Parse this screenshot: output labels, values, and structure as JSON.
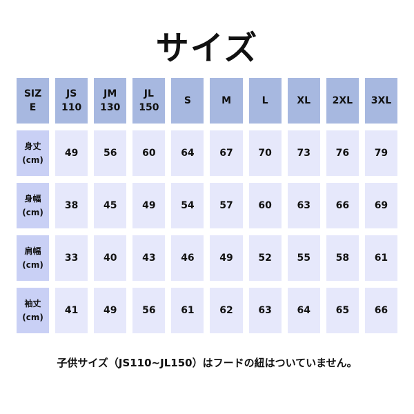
{
  "title": "サイズ",
  "header": [
    "SIZ\nE",
    "JS\n110",
    "JM\n130",
    "JL\n150",
    "S",
    "M",
    "L",
    "XL",
    "2XL",
    "3XL"
  ],
  "rows": [
    {
      "label": "身丈\n(cm)",
      "values": [
        "49",
        "56",
        "60",
        "64",
        "67",
        "70",
        "73",
        "76",
        "79"
      ]
    },
    {
      "label": "身幅\n(cm)",
      "values": [
        "38",
        "45",
        "49",
        "54",
        "57",
        "60",
        "63",
        "66",
        "69"
      ]
    },
    {
      "label": "肩幅\n(cm)",
      "values": [
        "33",
        "40",
        "43",
        "46",
        "49",
        "52",
        "55",
        "58",
        "61"
      ]
    },
    {
      "label": "袖丈\n(cm)",
      "values": [
        "41",
        "49",
        "56",
        "61",
        "62",
        "63",
        "64",
        "65",
        "66"
      ]
    }
  ],
  "note": "子供サイズ（JS110~JL150）はフードの紐はついていません。",
  "colors": {
    "header": "#a7b8e0",
    "row_label": "#c9d0f5",
    "cell": "#e6e8fb"
  }
}
